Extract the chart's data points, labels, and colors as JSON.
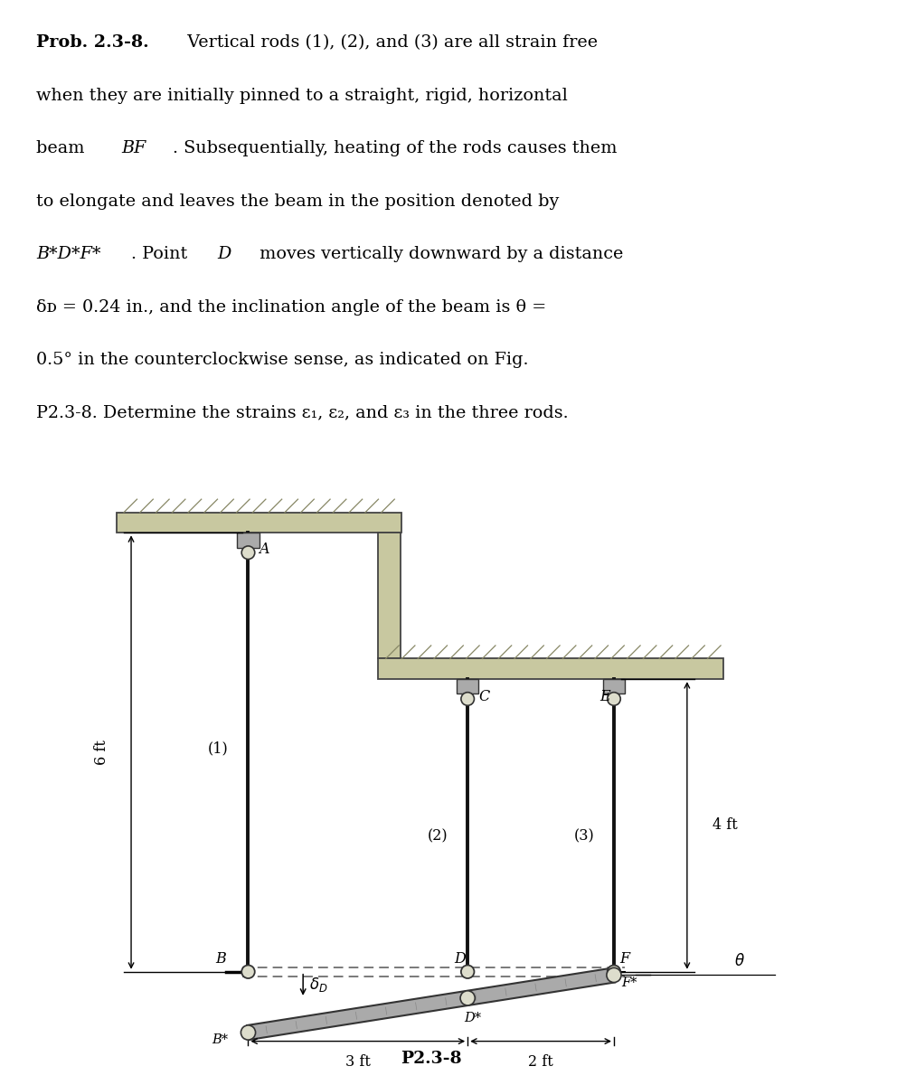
{
  "bg_color": "#ffffff",
  "text_color": "#000000",
  "rod_color": "#111111",
  "wall_color_face": "#c8c8a0",
  "wall_color_edge": "#444444",
  "dashed_color": "#555555",
  "beam_face": "#aaaaaa",
  "beam_edge": "#333333",
  "text_fontsize": 13.8,
  "diagram_fontsize": 11.5,
  "fig_label": "P2.3-8",
  "lines": [
    {
      "parts": [
        {
          "t": "Prob. 2.3-8.",
          "bold": true,
          "italic": false
        },
        {
          "t": "  Vertical rods (1), (2), and (3) are all strain free",
          "bold": false,
          "italic": false
        }
      ]
    },
    {
      "parts": [
        {
          "t": "when they are initially pinned to a straight, rigid, horizontal",
          "bold": false,
          "italic": false
        }
      ]
    },
    {
      "parts": [
        {
          "t": "beam ",
          "bold": false,
          "italic": false
        },
        {
          "t": "BF",
          "bold": false,
          "italic": true
        },
        {
          "t": ". Subsequentially, heating of the rods causes them",
          "bold": false,
          "italic": false
        }
      ]
    },
    {
      "parts": [
        {
          "t": "to elongate and leaves the beam in the position denoted by",
          "bold": false,
          "italic": false
        }
      ]
    },
    {
      "parts": [
        {
          "t": "B*D*F*",
          "bold": false,
          "italic": true
        },
        {
          "t": ". Point ",
          "bold": false,
          "italic": false
        },
        {
          "t": "D",
          "bold": false,
          "italic": true
        },
        {
          "t": " moves vertically downward by a distance",
          "bold": false,
          "italic": false
        }
      ]
    },
    {
      "parts": [
        {
          "t": "δᴅ = 0.24 in., and the inclination angle of the beam is θ =",
          "bold": false,
          "italic": false
        }
      ]
    },
    {
      "parts": [
        {
          "t": "0.5° in the counterclockwise sense, as indicated on Fig.",
          "bold": false,
          "italic": false
        }
      ]
    },
    {
      "parts": [
        {
          "t": "P2.3-8. Determine the strains ε₁, ε₂, and ε₃ in the three rods.",
          "bold": false,
          "italic": false
        }
      ]
    }
  ]
}
